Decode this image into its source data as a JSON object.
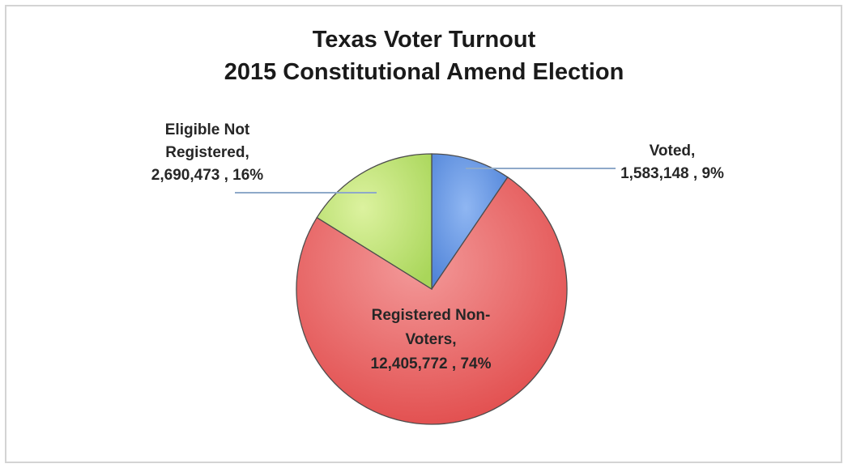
{
  "chart_data": {
    "type": "pie",
    "title_lines": [
      "Texas Voter Turnout",
      "2015 Constitutional Amend Election"
    ],
    "slices": [
      {
        "name": "Voted",
        "value": 1583148,
        "percent": "9%",
        "label_lines": [
          "Voted,",
          "1,583,148 , 9%"
        ],
        "color": "#5b8fe0"
      },
      {
        "name": "Registered Non-Voters",
        "value": 12405772,
        "percent": "74%",
        "label_lines": [
          "Registered Non-",
          "Voters,",
          "12,405,772 , 74%"
        ],
        "color": "#e85a5a"
      },
      {
        "name": "Eligible Not Registered",
        "value": 2690473,
        "percent": "16%",
        "label_lines": [
          "Eligible Not",
          "Registered,",
          "2,690,473 , 16%"
        ],
        "color": "#bde270"
      }
    ],
    "start_angle_deg": 0,
    "direction": "clockwise",
    "legend": "none"
  }
}
